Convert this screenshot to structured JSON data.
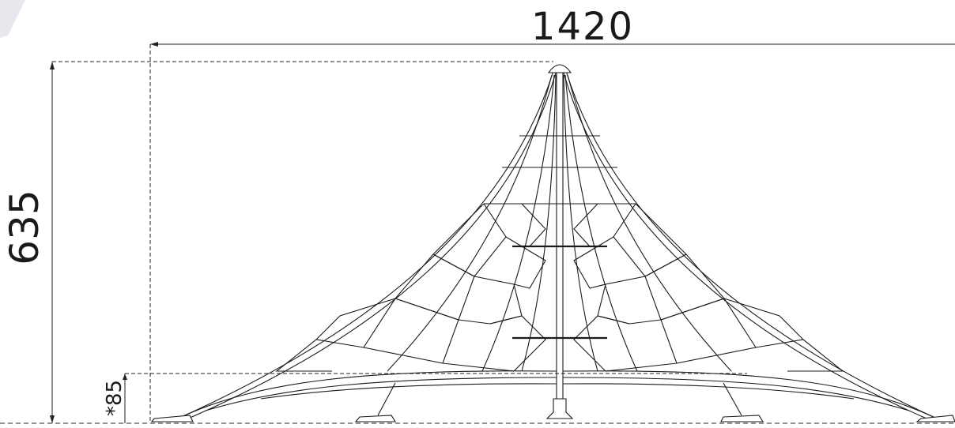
{
  "drawing": {
    "width_dimension": "1420",
    "height_dimension": "635",
    "base_height_dimension": "*85"
  },
  "colors": {
    "line": "#1a1a1a",
    "dash": "#222222",
    "corner_accent": "#e6e8ee"
  }
}
